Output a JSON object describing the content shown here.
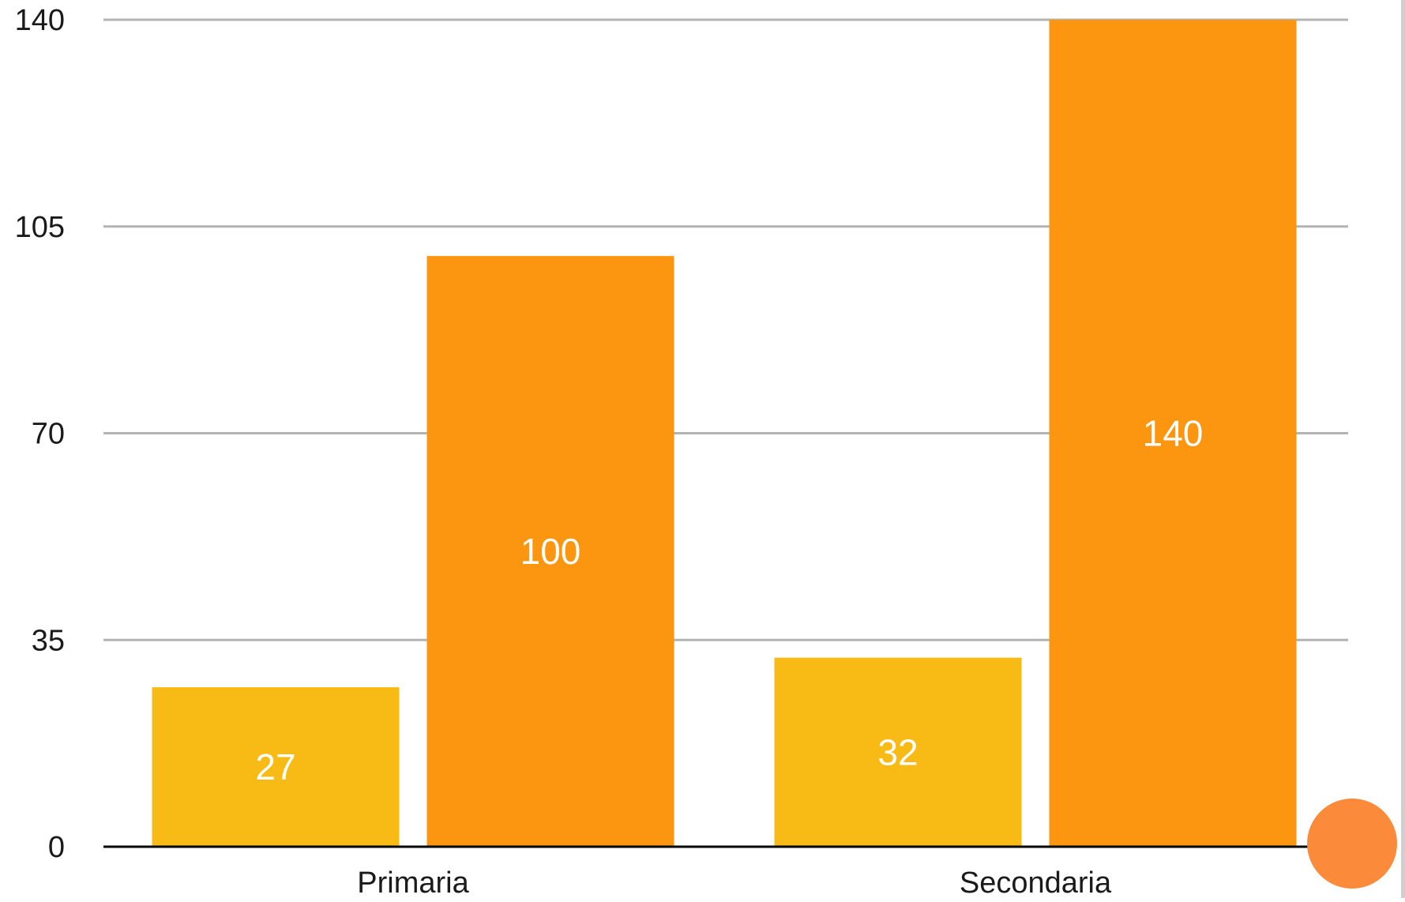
{
  "chart_data": {
    "type": "bar",
    "title": "",
    "xlabel": "",
    "ylabel": "",
    "categories": [
      "Primaria",
      "Secondaria"
    ],
    "series": [
      {
        "values": [
          27,
          32
        ],
        "color": "#F8BB16"
      },
      {
        "values": [
          100,
          140
        ],
        "color": "#FC9510"
      }
    ],
    "ylim": [
      0,
      140
    ],
    "yticks": [
      0,
      35,
      70,
      105,
      140
    ],
    "grid": true,
    "legend": "none",
    "data_labels": true
  },
  "decoration": {
    "corner_circle_color": "#FC8A3B"
  }
}
